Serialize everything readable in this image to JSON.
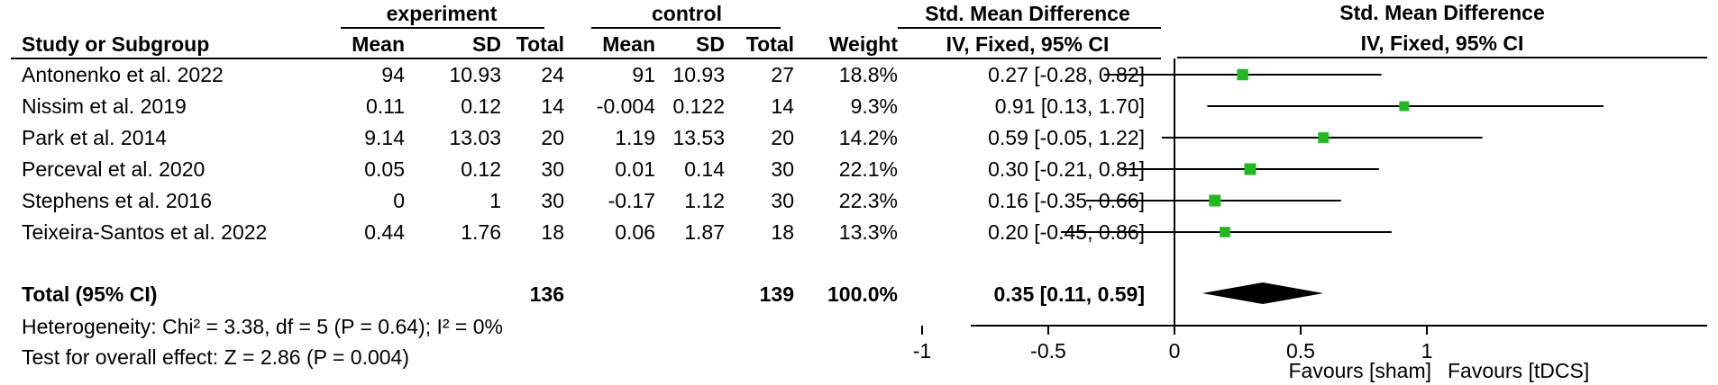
{
  "table": {
    "group_headers": {
      "experiment": "experiment",
      "control": "control"
    },
    "columns": {
      "study": "Study or Subgroup",
      "exp_mean": "Mean",
      "exp_sd": "SD",
      "exp_total": "Total",
      "ctl_mean": "Mean",
      "ctl_sd": "SD",
      "ctl_total": "Total",
      "weight": "Weight",
      "smd_title": "Std. Mean Difference",
      "smd_sub": "IV, Fixed, 95% CI"
    },
    "rows": [
      {
        "study": "Antonenko et al.  2022",
        "exp_mean": "94",
        "exp_sd": "10.93",
        "exp_total": "24",
        "ctl_mean": "91",
        "ctl_sd": "10.93",
        "ctl_total": "27",
        "weight": "18.8%",
        "ci": "0.27 [-0.28, 0.82]"
      },
      {
        "study": "Nissim et al. 2019",
        "exp_mean": "0.11",
        "exp_sd": "0.12",
        "exp_total": "14",
        "ctl_mean": "-0.004",
        "ctl_sd": "0.122",
        "ctl_total": "14",
        "weight": "9.3%",
        "ci": "0.91 [0.13, 1.70]"
      },
      {
        "study": "Park et al.  2014",
        "exp_mean": "9.14",
        "exp_sd": "13.03",
        "exp_total": "20",
        "ctl_mean": "1.19",
        "ctl_sd": "13.53",
        "ctl_total": "20",
        "weight": "14.2%",
        "ci": "0.59 [-0.05, 1.22]"
      },
      {
        "study": "Perceval et al.  2020",
        "exp_mean": "0.05",
        "exp_sd": "0.12",
        "exp_total": "30",
        "ctl_mean": "0.01",
        "ctl_sd": "0.14",
        "ctl_total": "30",
        "weight": "22.1%",
        "ci": "0.30 [-0.21, 0.81]"
      },
      {
        "study": "Stephens et al. 2016",
        "exp_mean": "0",
        "exp_sd": "1",
        "exp_total": "30",
        "ctl_mean": "-0.17",
        "ctl_sd": "1.12",
        "ctl_total": "30",
        "weight": "22.3%",
        "ci": "0.16 [-0.35, 0.66]"
      },
      {
        "study": "Teixeira-Santos et al.  2022",
        "exp_mean": "0.44",
        "exp_sd": "1.76",
        "exp_total": "18",
        "ctl_mean": "0.06",
        "ctl_sd": "1.87",
        "ctl_total": "18",
        "weight": "13.3%",
        "ci": "0.20 [-0.45, 0.86]"
      }
    ],
    "total": {
      "label": "Total (95% CI)",
      "exp_total": "136",
      "ctl_total": "139",
      "weight": "100.0%",
      "ci": "0.35 [0.11, 0.59]"
    },
    "heterogeneity": "Heterogeneity: Chi² = 3.38, df = 5 (P = 0.64); I² = 0%",
    "overall_effect": "Test for overall effect: Z = 2.86 (P = 0.004)"
  },
  "chart_data": {
    "type": "scatter",
    "subtype": "forest-plot",
    "title": "Std. Mean Difference",
    "subtitle": "IV, Fixed, 95% CI",
    "xlim": [
      -1.5,
      1.8
    ],
    "xticks": [
      -1,
      -0.5,
      0,
      0.5,
      1
    ],
    "xtick_labels": [
      "-1",
      "-0.5",
      "0",
      "0.5",
      "1"
    ],
    "favours_left": "Favours [sham]",
    "favours_right": "Favours [tDCS]",
    "marker_color": "#22b822",
    "studies": [
      {
        "name": "Antonenko et al.  2022",
        "smd": 0.27,
        "lower": -0.28,
        "upper": 0.82,
        "weight": 18.8
      },
      {
        "name": "Nissim et al. 2019",
        "smd": 0.91,
        "lower": 0.13,
        "upper": 1.7,
        "weight": 9.3
      },
      {
        "name": "Park et al.  2014",
        "smd": 0.59,
        "lower": -0.05,
        "upper": 1.22,
        "weight": 14.2
      },
      {
        "name": "Perceval et al.  2020",
        "smd": 0.3,
        "lower": -0.21,
        "upper": 0.81,
        "weight": 22.1
      },
      {
        "name": "Stephens et al. 2016",
        "smd": 0.16,
        "lower": -0.35,
        "upper": 0.66,
        "weight": 22.3
      },
      {
        "name": "Teixeira-Santos et al.  2022",
        "smd": 0.2,
        "lower": -0.45,
        "upper": 0.86,
        "weight": 13.3
      }
    ],
    "pooled": {
      "smd": 0.35,
      "lower": 0.11,
      "upper": 0.59
    }
  }
}
